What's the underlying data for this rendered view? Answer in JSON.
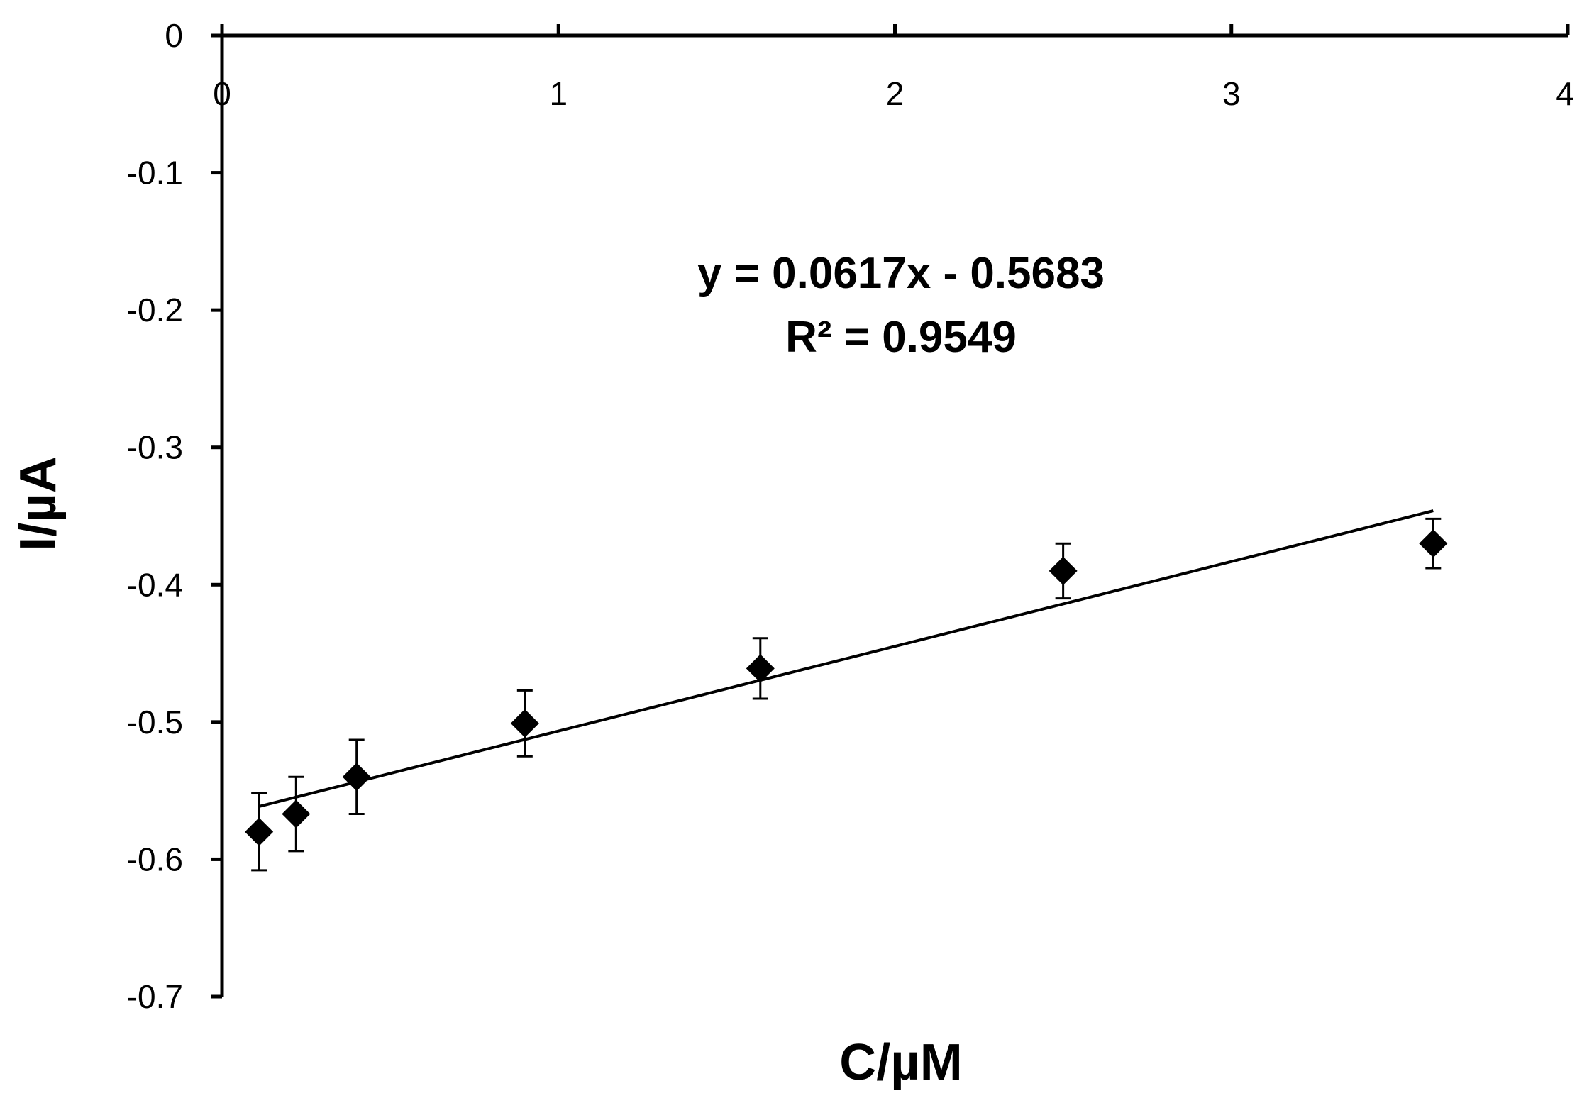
{
  "chart_data": {
    "type": "scatter",
    "xlabel": "C/µM",
    "ylabel": "I/µA",
    "xlim": [
      0,
      4
    ],
    "ylim": [
      -0.7,
      0
    ],
    "x_ticks": [
      0,
      1,
      2,
      3,
      4
    ],
    "y_ticks": [
      0,
      -0.1,
      -0.2,
      -0.3,
      -0.4,
      -0.5,
      -0.6,
      -0.7
    ],
    "x_tick_labels": [
      "0",
      "1",
      "2",
      "3",
      "4"
    ],
    "y_tick_labels": [
      "0",
      "-0.1",
      "-0.2",
      "-0.3",
      "-0.4",
      "-0.5",
      "-0.6",
      "-0.7"
    ],
    "x_axis_position": "top",
    "grid": false,
    "marker": "diamond",
    "marker_color": "#000000",
    "series": [
      {
        "x": [
          0.11,
          0.22,
          0.4,
          0.9,
          1.6,
          2.5,
          3.6
        ],
        "y": [
          -0.58,
          -0.567,
          -0.54,
          -0.501,
          -0.461,
          -0.39,
          -0.37
        ],
        "error": [
          0.028,
          0.027,
          0.027,
          0.024,
          0.022,
          0.02,
          0.018
        ]
      }
    ],
    "trendline": {
      "slope": 0.0617,
      "intercept": -0.5683,
      "x_range": [
        0.11,
        3.6
      ],
      "equation": "y = 0.0617x - 0.5683",
      "r_squared": "R² = 0.9549"
    }
  }
}
